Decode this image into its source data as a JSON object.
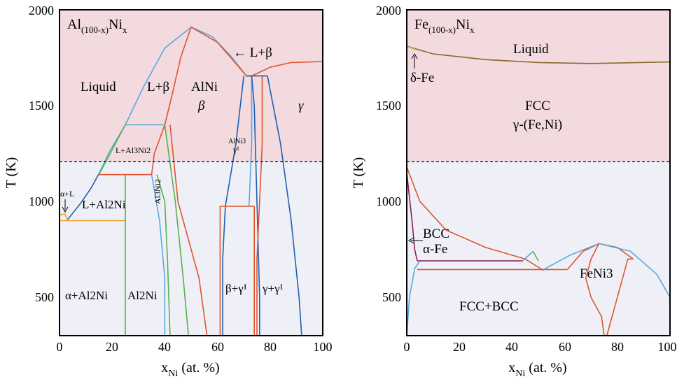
{
  "chart_data": [
    {
      "type": "line",
      "title": "Al(100-x)Nix",
      "title_main": "Al",
      "title_sub1": "(100-x)",
      "title_el2": "Ni",
      "title_sub2": "x",
      "xlabel": "x",
      "xlabel_sub": "Ni",
      "xlabel_rest": " (at. %)",
      "ylabel": "T (K)",
      "xlim": [
        0,
        100
      ],
      "ylim": [
        300,
        2000
      ],
      "xticks": [
        0,
        20,
        40,
        60,
        80,
        100
      ],
      "yticks": [
        500,
        1000,
        1500,
        2000
      ],
      "shading": {
        "upper": "#f2dadf",
        "lower": "#eff0f7",
        "boundary_T": 1200
      },
      "dashed_line_T": 1200,
      "labels": {
        "liquid": "Liquid",
        "l_beta": "L+β",
        "alni": "AlNi",
        "beta": "β",
        "l_beta_arrow": "← L+β",
        "gamma": "γ",
        "l_al3ni2": "L+Al3Ni2",
        "alni3": "AlNi3",
        "gamma1": "γ¹",
        "al3ni2": "Al3Ni2",
        "alpha_l": "α+L",
        "l_al2ni": "L+Al2Ni",
        "alpha_al2ni": "α+Al2Ni",
        "al2ni": "Al2Ni",
        "beta_gamma1": "β+γ¹",
        "gamma_gamma1": "γ+γ¹"
      },
      "series": [
        {
          "color": "#5aa9dc",
          "points": [
            [
              25,
              1400
            ],
            [
              32,
              1600
            ],
            [
              40,
              1800
            ],
            [
              50,
              1910
            ],
            [
              58,
              1860
            ],
            [
              65,
              1760
            ],
            [
              71,
              1655
            ]
          ]
        },
        {
          "color": "#e0542c",
          "points": [
            [
              40,
              1400
            ],
            [
              43,
              1570
            ],
            [
              46,
              1750
            ],
            [
              50,
              1910
            ]
          ]
        },
        {
          "color": "#e0542c",
          "points": [
            [
              50,
              1910
            ],
            [
              60,
              1830
            ],
            [
              67,
              1720
            ],
            [
              71,
              1655
            ],
            [
              73,
              1655
            ]
          ]
        },
        {
          "color": "#e0542c",
          "points": [
            [
              73,
              1655
            ],
            [
              80,
              1700
            ],
            [
              88,
              1725
            ],
            [
              100,
              1730
            ]
          ]
        },
        {
          "color": "#5aa9dc",
          "points": [
            [
              15,
              1145
            ],
            [
              19,
              1260
            ],
            [
              25,
              1400
            ]
          ]
        },
        {
          "color": "#1f5fb0",
          "points": [
            [
              3,
              905
            ],
            [
              8,
              990
            ],
            [
              12,
              1070
            ],
            [
              15,
              1145
            ]
          ]
        },
        {
          "color": "#f0a020",
          "points": [
            [
              0,
              930
            ],
            [
              2,
              935
            ],
            [
              3,
              905
            ]
          ]
        },
        {
          "color": "#f0a020",
          "points": [
            [
              0,
              900
            ],
            [
              25,
              900
            ]
          ]
        },
        {
          "color": "#5ab04a",
          "points": [
            [
              25,
              300
            ],
            [
              25,
              1140
            ]
          ]
        },
        {
          "color": "#e0542c",
          "points": [
            [
              15,
              1140
            ],
            [
              35,
              1140
            ]
          ]
        },
        {
          "color": "#5aa9dc",
          "points": [
            [
              25,
              1400
            ],
            [
              40,
              1400
            ]
          ]
        },
        {
          "color": "#5ab04a",
          "points": [
            [
              15,
              1140
            ],
            [
              25,
              1400
            ]
          ]
        },
        {
          "color": "#e0542c",
          "points": [
            [
              35,
              1140
            ],
            [
              36,
              1250
            ],
            [
              40,
              1400
            ]
          ]
        },
        {
          "color": "#5aa9dc",
          "points": [
            [
              35,
              1140
            ],
            [
              38,
              900
            ],
            [
              40,
              600
            ],
            [
              40,
              300
            ]
          ]
        },
        {
          "color": "#5ab04a",
          "points": [
            [
              37,
              1140
            ],
            [
              40,
              1000
            ],
            [
              41,
              700
            ],
            [
              42,
              300
            ]
          ]
        },
        {
          "color": "#5ab04a",
          "points": [
            [
              40,
              1400
            ],
            [
              44,
              1000
            ],
            [
              47,
              600
            ],
            [
              49,
              300
            ]
          ]
        },
        {
          "color": "#e0542c",
          "points": [
            [
              42,
              1400
            ],
            [
              45,
              1000
            ],
            [
              53,
              600
            ],
            [
              56,
              300
            ]
          ]
        },
        {
          "color": "#1f5fb0",
          "points": [
            [
              70,
              1655
            ],
            [
              67,
              1300
            ],
            [
              63,
              975
            ],
            [
              62,
              700
            ],
            [
              62,
              300
            ]
          ]
        },
        {
          "color": "#e0542c",
          "points": [
            [
              61,
              975
            ],
            [
              74,
              975
            ]
          ]
        },
        {
          "color": "#e0542c",
          "points": [
            [
              61,
              975
            ],
            [
              61,
              300
            ]
          ]
        },
        {
          "color": "#e0542c",
          "points": [
            [
              74,
              975
            ],
            [
              74,
              300
            ]
          ]
        },
        {
          "color": "#5aa9dc",
          "points": [
            [
              73,
              1655
            ],
            [
              73,
              1300
            ],
            [
              72,
              975
            ]
          ]
        },
        {
          "color": "#1f5fb0",
          "points": [
            [
              73,
              1655
            ],
            [
              74,
              1500
            ],
            [
              75,
              1000
            ],
            [
              76,
              500
            ],
            [
              76,
              300
            ]
          ]
        },
        {
          "color": "#e0542c",
          "points": [
            [
              77,
              1655
            ],
            [
              77,
              1300
            ],
            [
              76,
              1000
            ],
            [
              75,
              700
            ],
            [
              75,
              300
            ]
          ]
        },
        {
          "color": "#1f5fb0",
          "points": [
            [
              79,
              1655
            ],
            [
              84,
              1300
            ],
            [
              88,
              900
            ],
            [
              91,
              500
            ],
            [
              92,
              300
            ]
          ]
        },
        {
          "color": "#1f5fb0",
          "points": [
            [
              71,
              1655
            ],
            [
              79,
              1655
            ]
          ]
        }
      ]
    },
    {
      "type": "line",
      "title": "Fe(100-x)Nix",
      "title_main": "Fe",
      "title_sub1": "(100-x)",
      "title_el2": "Ni",
      "title_sub2": "x",
      "xlabel": "x",
      "xlabel_sub": "Ni",
      "xlabel_rest": " (at. %)",
      "ylabel": "T (K)",
      "xlim": [
        0,
        100
      ],
      "ylim": [
        300,
        2000
      ],
      "xticks": [
        0,
        20,
        40,
        60,
        80,
        100
      ],
      "yticks": [
        500,
        1000,
        1500,
        2000
      ],
      "shading": {
        "upper": "#f2dadf",
        "lower": "#eff0f7",
        "boundary_T": 1200
      },
      "dashed_line_T": 1200,
      "labels": {
        "liquid": "Liquid",
        "delta_fe": "δ-Fe",
        "fcc": "FCC",
        "gamma_feni": "γ-(Fe,Ni)",
        "bcc": "BCC",
        "alpha_fe": "α-Fe",
        "feni3": "FeNi3",
        "fcc_bcc": "FCC+BCC"
      },
      "series": [
        {
          "color": "#8a6a2a",
          "points": [
            [
              0,
              1810
            ],
            [
              10,
              1770
            ],
            [
              30,
              1740
            ],
            [
              50,
              1725
            ],
            [
              70,
              1720
            ],
            [
              100,
              1728
            ]
          ]
        },
        {
          "color": "#c0b050",
          "points": [
            [
              0,
              1808
            ],
            [
              2,
              1800
            ],
            [
              4,
              1790
            ]
          ]
        },
        {
          "color": "#e0542c",
          "points": [
            [
              0,
              1180
            ],
            [
              5,
              1000
            ],
            [
              15,
              850
            ],
            [
              30,
              760
            ],
            [
              45,
              700
            ],
            [
              52,
              640
            ]
          ]
        },
        {
          "color": "#5aa9dc",
          "points": [
            [
              0,
              300
            ],
            [
              1,
              500
            ],
            [
              3,
              650
            ],
            [
              5,
              690
            ]
          ]
        },
        {
          "color": "#8a2050",
          "points": [
            [
              0,
              1150
            ],
            [
              2,
              900
            ],
            [
              3,
              750
            ],
            [
              4,
              690
            ]
          ]
        },
        {
          "color": "#8a2050",
          "points": [
            [
              4,
              690
            ],
            [
              44,
              690
            ]
          ]
        },
        {
          "color": "#e0542c",
          "points": [
            [
              4,
              645
            ],
            [
              61,
              645
            ]
          ]
        },
        {
          "color": "#5aa9dc",
          "points": [
            [
              44,
              690
            ],
            [
              48,
              740
            ]
          ]
        },
        {
          "color": "#5ab04a",
          "points": [
            [
              48,
              740
            ],
            [
              50,
              690
            ]
          ]
        },
        {
          "color": "#e0542c",
          "points": [
            [
              61,
              645
            ],
            [
              67,
              740
            ],
            [
              73,
              780
            ],
            [
              80,
              760
            ],
            [
              86,
              700
            ]
          ]
        },
        {
          "color": "#5aa9dc",
          "points": [
            [
              52,
              645
            ],
            [
              62,
              720
            ],
            [
              73,
              780
            ],
            [
              85,
              740
            ],
            [
              95,
              620
            ],
            [
              100,
              500
            ]
          ]
        },
        {
          "color": "#e0542c",
          "points": [
            [
              73,
              780
            ],
            [
              70,
              700
            ],
            [
              68,
              600
            ],
            [
              70,
              500
            ],
            [
              74,
              400
            ],
            [
              75,
              300
            ]
          ]
        },
        {
          "color": "#e0542c",
          "points": [
            [
              76,
              300
            ],
            [
              78,
              400
            ],
            [
              80,
              500
            ],
            [
              82,
              600
            ],
            [
              84,
              700
            ],
            [
              86,
              700
            ]
          ]
        }
      ]
    }
  ]
}
